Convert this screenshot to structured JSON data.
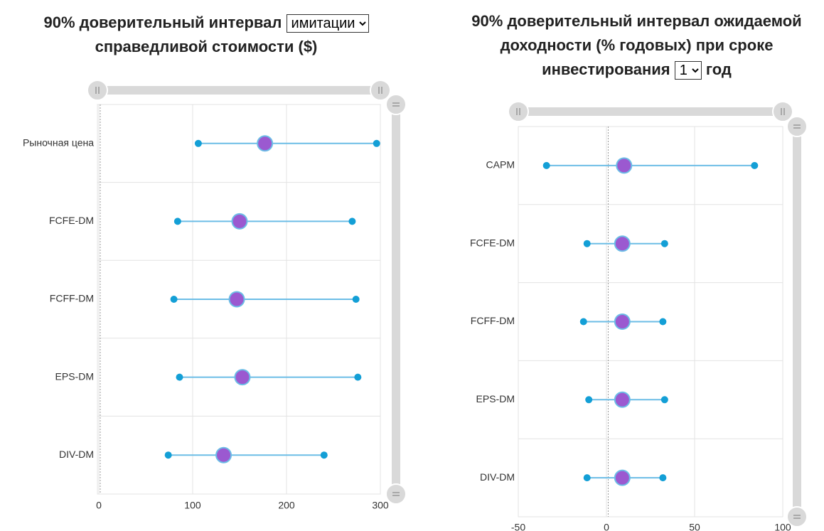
{
  "chart_data": [
    {
      "type": "dumbbell",
      "title": "90% доверительный интервал",
      "title_select": "имитации",
      "title_end": "справедливой стоимости ($)",
      "categories": [
        "Рыночная цена",
        "FCFE-DM",
        "FCFF-DM",
        "EPS-DM",
        "DIV-DM"
      ],
      "low": [
        106,
        84,
        80,
        86,
        74
      ],
      "mid": [
        177,
        150,
        147,
        153,
        133
      ],
      "high": [
        296,
        270,
        274,
        276,
        240
      ],
      "xlim": [
        -1.5,
        300
      ],
      "xticks": [
        0,
        100,
        200,
        300
      ],
      "reference_line": 1.5,
      "grid": true,
      "line_color": "#6cbde6",
      "dot_color": "#139fd6",
      "point_color": "#9b59d0"
    },
    {
      "type": "dumbbell",
      "title": "90% доверительный интервал ожидаемой доходности (% годовых) при сроке инвестирования",
      "title_select": "1",
      "title_end": "год",
      "categories": [
        "CAPM",
        "FCFE-DM",
        "FCFF-DM",
        "EPS-DM",
        "DIV-DM"
      ],
      "low": [
        -34,
        -11,
        -13,
        -10,
        -11
      ],
      "mid": [
        10,
        9,
        9,
        9,
        9
      ],
      "high": [
        84,
        33,
        32,
        33,
        32
      ],
      "xlim": [
        -50,
        100
      ],
      "xticks": [
        -50,
        0,
        50,
        100
      ],
      "reference_line": 1,
      "grid": true,
      "line_color": "#6cbde6",
      "dot_color": "#139fd6",
      "point_color": "#9b59d0"
    }
  ]
}
